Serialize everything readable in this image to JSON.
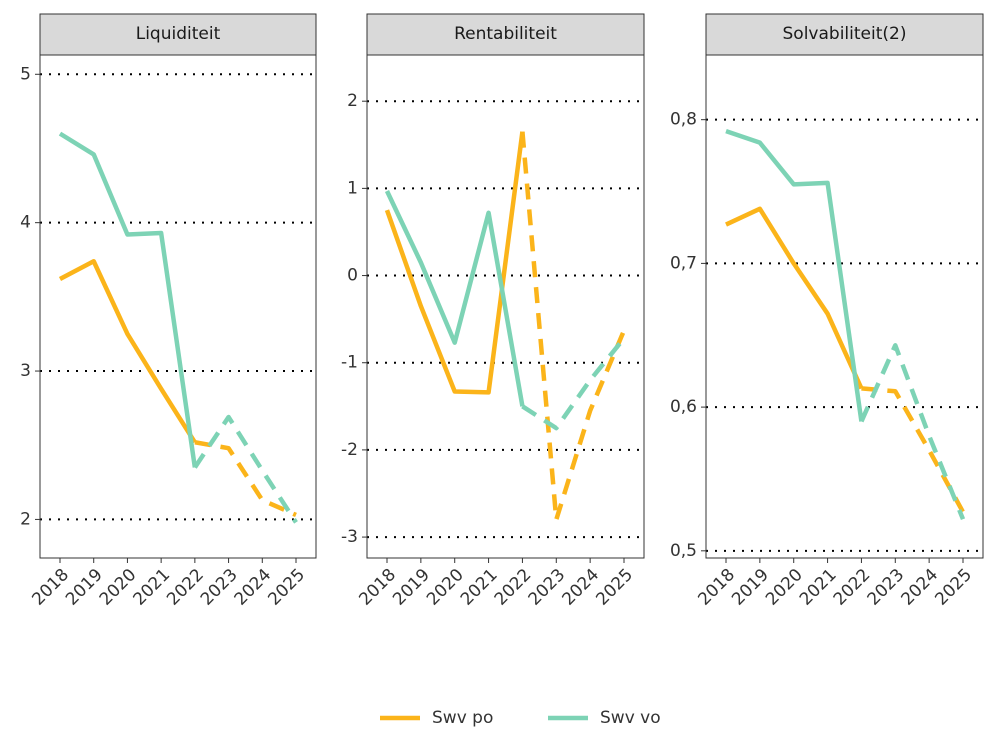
{
  "chart_data": [
    {
      "type": "line",
      "title": "Liquiditeit",
      "categories": [
        "2018",
        "2019",
        "2020",
        "2021",
        "2022",
        "2023",
        "2024",
        "2025"
      ],
      "dashed_from": "2022",
      "series": [
        {
          "name": "Swv po",
          "color": "#fbb41a",
          "values": [
            3.62,
            3.74,
            3.25,
            2.88,
            2.52,
            2.48,
            2.13,
            2.03
          ]
        },
        {
          "name": "Swv vo",
          "color": "#7dd3b5",
          "values": [
            4.6,
            4.46,
            3.92,
            3.93,
            2.35,
            2.69,
            2.33,
            1.98
          ]
        }
      ],
      "ylim": [
        1.74,
        5.13
      ],
      "yticks": [
        2,
        3,
        4,
        5
      ],
      "grid": true
    },
    {
      "type": "line",
      "title": "Rentabiliteit",
      "categories": [
        "2018",
        "2019",
        "2020",
        "2021",
        "2022",
        "2023",
        "2024",
        "2025"
      ],
      "dashed_from": "2022",
      "series": [
        {
          "name": "Swv po",
          "color": "#fbb41a",
          "values": [
            0.75,
            -0.35,
            -1.33,
            -1.34,
            1.65,
            -2.8,
            -1.55,
            -0.63
          ]
        },
        {
          "name": "Swv vo",
          "color": "#7dd3b5",
          "values": [
            0.97,
            0.15,
            -0.77,
            0.72,
            -1.5,
            -1.75,
            -1.2,
            -0.72
          ]
        }
      ],
      "ylim": [
        -3.24,
        2.53
      ],
      "yticks": [
        -3,
        -2,
        -1,
        0,
        1,
        2
      ],
      "grid": true
    },
    {
      "type": "line",
      "title": "Solvabiliteit(2)",
      "categories": [
        "2018",
        "2019",
        "2020",
        "2021",
        "2022",
        "2023",
        "2024",
        "2025"
      ],
      "dashed_from": "2022",
      "series": [
        {
          "name": "Swv po",
          "color": "#fbb41a",
          "values": [
            0.727,
            0.738,
            0.7,
            0.665,
            0.613,
            0.611,
            0.57,
            0.527
          ]
        },
        {
          "name": "Swv vo",
          "color": "#7dd3b5",
          "values": [
            0.792,
            0.784,
            0.755,
            0.756,
            0.59,
            0.643,
            0.58,
            0.522
          ]
        }
      ],
      "ylim": [
        0.495,
        0.845
      ],
      "yticks": [
        {
          "value": 0.5,
          "label": "0,5"
        },
        {
          "value": 0.6,
          "label": "0,6"
        },
        {
          "value": 0.7,
          "label": "0,7"
        },
        {
          "value": 0.8,
          "label": "0,8"
        }
      ],
      "grid": true
    }
  ]
}
